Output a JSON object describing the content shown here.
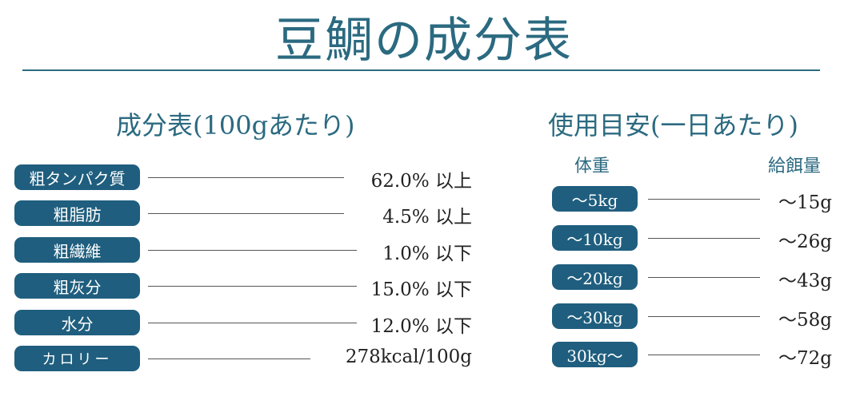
{
  "title": "豆鯛の成分表",
  "composition": {
    "heading": "成分表(100gあたり)",
    "rows": [
      {
        "label": "粗タンパク質",
        "value": "62.0% 以上"
      },
      {
        "label": "粗脂肪",
        "value": "4.5% 以上"
      },
      {
        "label": "粗繊維",
        "value": "1.0% 以下"
      },
      {
        "label": "粗灰分",
        "value": "15.0% 以下"
      },
      {
        "label": "水分",
        "value": "12.0% 以下"
      },
      {
        "label": "カロリー",
        "value": "278kcal/100g"
      }
    ]
  },
  "usage": {
    "heading": "使用目安(一日あたり)",
    "col_weight": "体重",
    "col_feed": "給餌量",
    "rows": [
      {
        "weight": "～5kg",
        "feed": "～15g"
      },
      {
        "weight": "～10kg",
        "feed": "～26g"
      },
      {
        "weight": "～20kg",
        "feed": "～43g"
      },
      {
        "weight": "～30kg",
        "feed": "～58g"
      },
      {
        "weight": "30kg～",
        "feed": "～72g"
      }
    ]
  },
  "colors": {
    "accent": "#1f5e7e",
    "title": "#2b6a80"
  }
}
